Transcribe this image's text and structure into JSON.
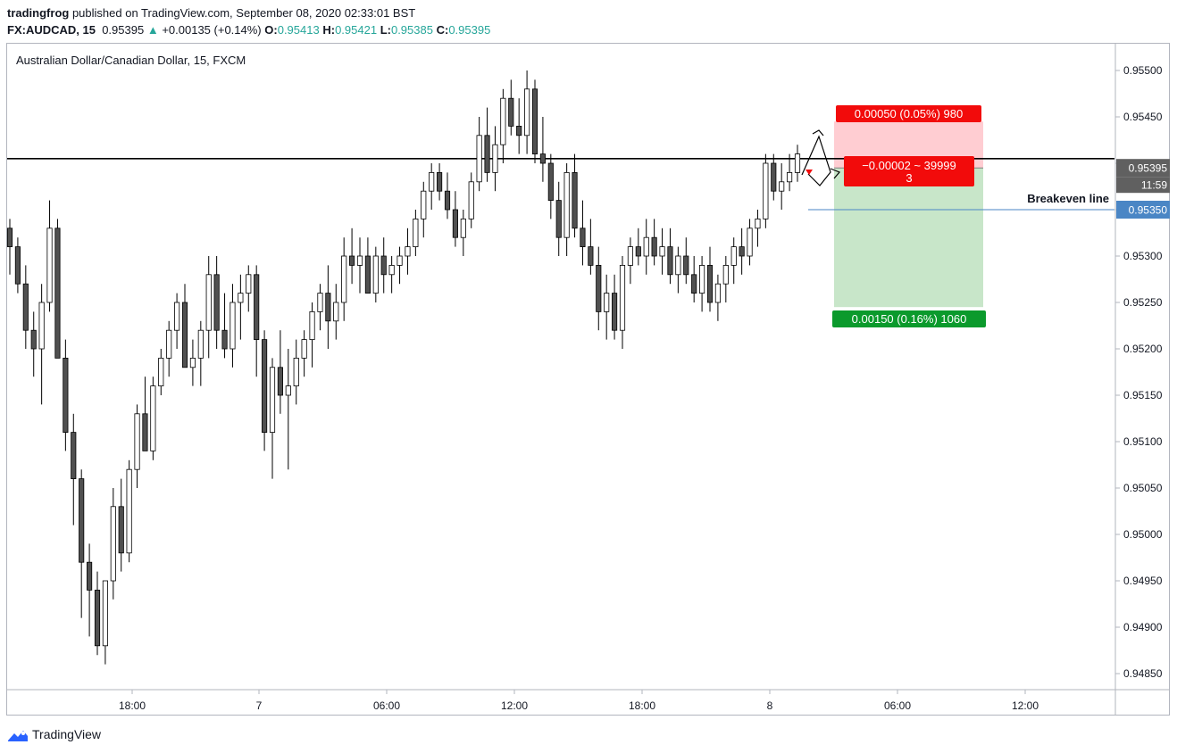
{
  "header": {
    "author": "tradingfrog",
    "published": "published on TradingView.com, September 08, 2020 02:33:01 BST",
    "symbol": "FX:AUDCAD, 15",
    "last": "0.95395",
    "change_icon": "triangle-up-icon",
    "change": "+0.00135 (+0.14%)",
    "open_label": "O:",
    "open": "0.95413",
    "high_label": "H:",
    "high": "0.95421",
    "low_label": "L:",
    "low": "0.95385",
    "close_label": "C:",
    "close": "0.95395"
  },
  "chart_data": {
    "type": "candlestick",
    "title": "Australian Dollar/Canadian Dollar, 15, FXCM",
    "ylim": [
      0.9483,
      0.9552
    ],
    "y_ticks": [
      "0.95500",
      "0.95450",
      "0.95400",
      "0.95350",
      "0.95300",
      "0.95250",
      "0.95200",
      "0.95150",
      "0.95100",
      "0.95050",
      "0.95000",
      "0.94950",
      "0.94900",
      "0.94850"
    ],
    "x_ticks": [
      "18:00",
      "7",
      "06:00",
      "12:00",
      "18:00",
      "8",
      "06:00",
      "12:00"
    ],
    "candles_ohlc": [
      [
        0.9533,
        0.9534,
        0.9528,
        0.9531
      ],
      [
        0.9531,
        0.9532,
        0.9526,
        0.9527
      ],
      [
        0.9527,
        0.9529,
        0.952,
        0.9522
      ],
      [
        0.9522,
        0.9524,
        0.9517,
        0.952
      ],
      [
        0.952,
        0.9527,
        0.9514,
        0.9525
      ],
      [
        0.9525,
        0.9536,
        0.9524,
        0.9533
      ],
      [
        0.9533,
        0.9534,
        0.9521,
        0.9519
      ],
      [
        0.9519,
        0.9521,
        0.9509,
        0.9511
      ],
      [
        0.9511,
        0.9513,
        0.9501,
        0.9506
      ],
      [
        0.9506,
        0.9507,
        0.9491,
        0.9497
      ],
      [
        0.9497,
        0.9499,
        0.9489,
        0.9494
      ],
      [
        0.9494,
        0.9496,
        0.9487,
        0.9488
      ],
      [
        0.9488,
        0.949,
        0.9486,
        0.9495
      ],
      [
        0.9495,
        0.9505,
        0.9493,
        0.9503
      ],
      [
        0.9503,
        0.9506,
        0.9496,
        0.9498
      ],
      [
        0.9498,
        0.9508,
        0.9497,
        0.9507
      ],
      [
        0.9507,
        0.9514,
        0.9505,
        0.9513
      ],
      [
        0.9513,
        0.9517,
        0.951,
        0.9509
      ],
      [
        0.9509,
        0.9517,
        0.9508,
        0.9516
      ],
      [
        0.9516,
        0.952,
        0.9515,
        0.9519
      ],
      [
        0.9519,
        0.9523,
        0.9517,
        0.9522
      ],
      [
        0.9522,
        0.9526,
        0.952,
        0.9525
      ],
      [
        0.9525,
        0.9527,
        0.9519,
        0.9518
      ],
      [
        0.9518,
        0.9521,
        0.9516,
        0.9519
      ],
      [
        0.9519,
        0.9523,
        0.9516,
        0.9522
      ],
      [
        0.9522,
        0.953,
        0.9519,
        0.9528
      ],
      [
        0.9528,
        0.953,
        0.952,
        0.9522
      ],
      [
        0.9522,
        0.9526,
        0.9519,
        0.952
      ],
      [
        0.952,
        0.9527,
        0.9518,
        0.9525
      ],
      [
        0.9525,
        0.9528,
        0.9521,
        0.9526
      ],
      [
        0.9526,
        0.9529,
        0.9524,
        0.9528
      ],
      [
        0.9528,
        0.9529,
        0.9517,
        0.9521
      ],
      [
        0.9521,
        0.9522,
        0.9509,
        0.9511
      ],
      [
        0.9511,
        0.9519,
        0.9506,
        0.9518
      ],
      [
        0.9518,
        0.9522,
        0.9513,
        0.9515
      ],
      [
        0.9515,
        0.952,
        0.9507,
        0.9516
      ],
      [
        0.9516,
        0.9521,
        0.9514,
        0.9519
      ],
      [
        0.9519,
        0.9522,
        0.9517,
        0.9521
      ],
      [
        0.9521,
        0.9525,
        0.9518,
        0.9524
      ],
      [
        0.9524,
        0.9527,
        0.9522,
        0.9526
      ],
      [
        0.9526,
        0.9529,
        0.952,
        0.9523
      ],
      [
        0.9523,
        0.9527,
        0.9521,
        0.9525
      ],
      [
        0.9525,
        0.9532,
        0.9523,
        0.953
      ],
      [
        0.953,
        0.9533,
        0.9527,
        0.9529
      ],
      [
        0.9529,
        0.9532,
        0.9526,
        0.953
      ],
      [
        0.953,
        0.9532,
        0.9527,
        0.9526
      ],
      [
        0.9526,
        0.9531,
        0.9525,
        0.953
      ],
      [
        0.953,
        0.9532,
        0.9526,
        0.9528
      ],
      [
        0.9528,
        0.953,
        0.9526,
        0.9529
      ],
      [
        0.9529,
        0.9531,
        0.9527,
        0.953
      ],
      [
        0.953,
        0.9533,
        0.9528,
        0.9531
      ],
      [
        0.9531,
        0.9535,
        0.953,
        0.9534
      ],
      [
        0.9534,
        0.9538,
        0.9532,
        0.9537
      ],
      [
        0.9537,
        0.954,
        0.9535,
        0.9539
      ],
      [
        0.9539,
        0.954,
        0.9536,
        0.9537
      ],
      [
        0.9537,
        0.9539,
        0.9534,
        0.9535
      ],
      [
        0.9535,
        0.9537,
        0.9531,
        0.9532
      ],
      [
        0.9532,
        0.9535,
        0.953,
        0.9534
      ],
      [
        0.9534,
        0.9539,
        0.9533,
        0.9538
      ],
      [
        0.9538,
        0.9545,
        0.9537,
        0.9543
      ],
      [
        0.9543,
        0.9546,
        0.9538,
        0.9539
      ],
      [
        0.9539,
        0.9544,
        0.9537,
        0.9542
      ],
      [
        0.9542,
        0.9548,
        0.954,
        0.9547
      ],
      [
        0.9547,
        0.9549,
        0.9543,
        0.9544
      ],
      [
        0.9544,
        0.9547,
        0.9541,
        0.9543
      ],
      [
        0.9543,
        0.955,
        0.9541,
        0.9548
      ],
      [
        0.9548,
        0.9549,
        0.954,
        0.9541
      ],
      [
        0.9541,
        0.9545,
        0.9538,
        0.954
      ],
      [
        0.954,
        0.9541,
        0.9534,
        0.9536
      ],
      [
        0.9536,
        0.9538,
        0.953,
        0.9532
      ],
      [
        0.9532,
        0.954,
        0.953,
        0.9539
      ],
      [
        0.9539,
        0.9541,
        0.9532,
        0.9533
      ],
      [
        0.9533,
        0.9536,
        0.9529,
        0.9531
      ],
      [
        0.9531,
        0.9534,
        0.9528,
        0.9529
      ],
      [
        0.9529,
        0.9531,
        0.9522,
        0.9524
      ],
      [
        0.9524,
        0.9528,
        0.9521,
        0.9526
      ],
      [
        0.9526,
        0.9528,
        0.9521,
        0.9522
      ],
      [
        0.9522,
        0.953,
        0.952,
        0.9529
      ],
      [
        0.9529,
        0.9532,
        0.9527,
        0.9531
      ],
      [
        0.9531,
        0.9533,
        0.9529,
        0.953
      ],
      [
        0.953,
        0.9534,
        0.9528,
        0.9532
      ],
      [
        0.9532,
        0.9534,
        0.9529,
        0.953
      ],
      [
        0.953,
        0.9533,
        0.9528,
        0.9531
      ],
      [
        0.9531,
        0.9533,
        0.9527,
        0.9528
      ],
      [
        0.9528,
        0.9531,
        0.9526,
        0.953
      ],
      [
        0.953,
        0.9532,
        0.9527,
        0.9528
      ],
      [
        0.9528,
        0.953,
        0.9525,
        0.9526
      ],
      [
        0.9526,
        0.953,
        0.9524,
        0.9529
      ],
      [
        0.9529,
        0.9531,
        0.9524,
        0.9525
      ],
      [
        0.9525,
        0.9528,
        0.9523,
        0.9527
      ],
      [
        0.9527,
        0.953,
        0.9525,
        0.9529
      ],
      [
        0.9529,
        0.9532,
        0.9527,
        0.9531
      ],
      [
        0.9531,
        0.9533,
        0.9528,
        0.953
      ],
      [
        0.953,
        0.9534,
        0.9529,
        0.9533
      ],
      [
        0.9533,
        0.9535,
        0.9531,
        0.9534
      ],
      [
        0.9534,
        0.9541,
        0.9533,
        0.954
      ],
      [
        0.954,
        0.9541,
        0.9536,
        0.9537
      ],
      [
        0.9537,
        0.954,
        0.9535,
        0.9538
      ],
      [
        0.9538,
        0.9541,
        0.9537,
        0.9539
      ],
      [
        0.9539,
        0.9542,
        0.9538,
        0.9541
      ]
    ],
    "horizontal_line": {
      "price": 0.95405
    },
    "breakeven_line": {
      "label": "Breakeven line",
      "price": 0.9535
    },
    "position": {
      "type": "short",
      "entry": 0.95395,
      "stop": 0.95445,
      "target": 0.95245,
      "stop_label": "0.00050 (0.05%) 980",
      "pnl_label": "−0.00002 ~ 39999",
      "pnl_label_2": "3",
      "target_label": "0.00150 (0.16%) 1060"
    },
    "last_price_tag": "0.95395",
    "countdown_tag": "11:59",
    "breakeven_tag": "0.95350"
  },
  "colors": {
    "candle_up": "#ffffff",
    "candle_down": "#505050",
    "candle_border": "#000000",
    "stop_zone": "#ffcdd2",
    "target_zone": "#c8e6c9",
    "stop_label_bg": "#f20b0b",
    "target_label_bg": "#0b9a2c",
    "breakeven_line": "#4a86c5",
    "last_price_tag_bg": "#606060",
    "accent": "#26a69a"
  },
  "footer": {
    "brand": "TradingView",
    "logo_icon": "tradingview-logo-icon"
  }
}
